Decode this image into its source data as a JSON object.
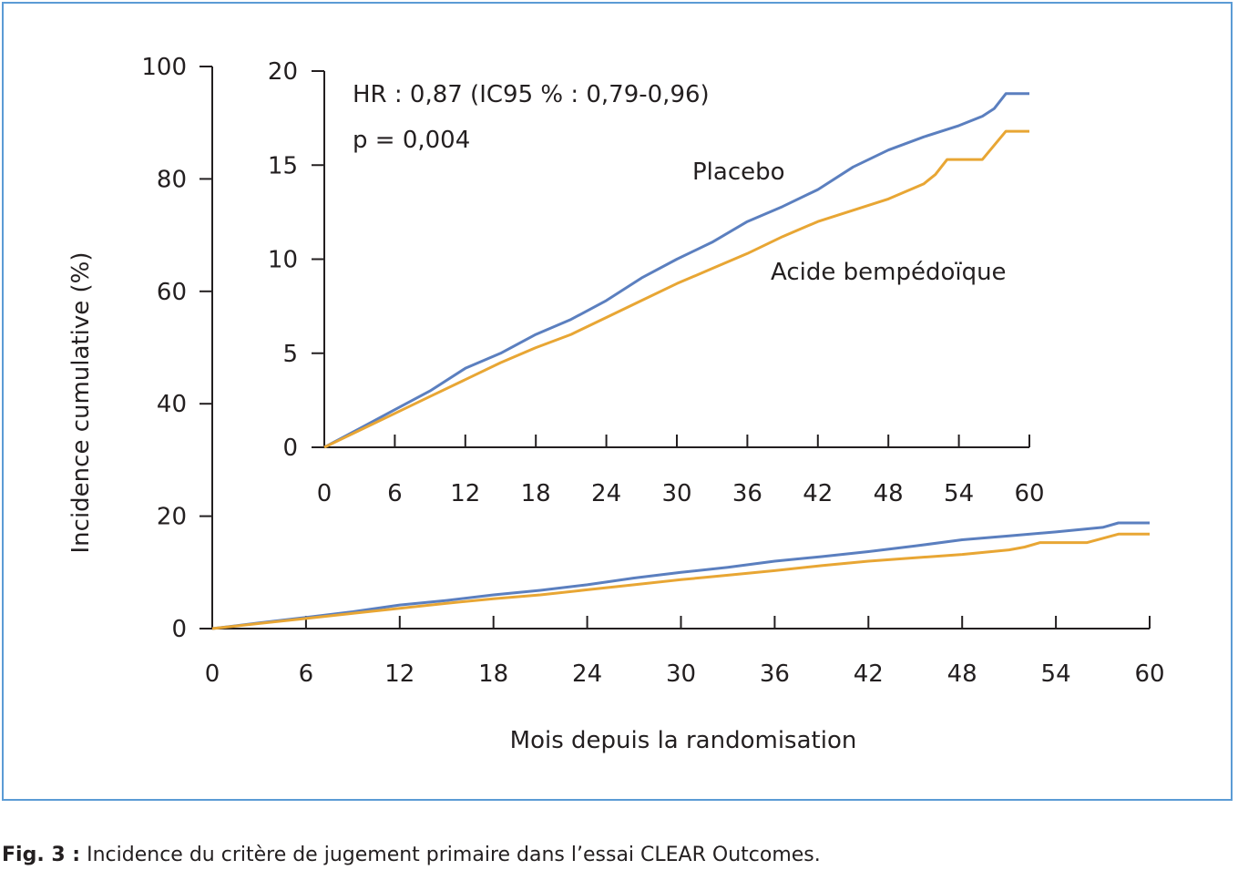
{
  "caption": {
    "label": "Fig. 3 :",
    "text": "Incidence du critère de jugement primaire dans l’essai CLEAR Outcomes."
  },
  "colors": {
    "placebo": "#5b7fbf",
    "bempedoic": "#e8a634",
    "frame": "#5b9bd5"
  },
  "chart_data": [
    {
      "type": "line",
      "role": "main",
      "xlabel": "Mois depuis la randomisation",
      "ylabel": "Incidence cumulative (%)",
      "xlim": [
        0,
        60
      ],
      "ylim": [
        0,
        100
      ],
      "xticks": [
        0,
        6,
        12,
        18,
        24,
        30,
        36,
        42,
        48,
        54,
        60
      ],
      "yticks": [
        0,
        20,
        40,
        60,
        80,
        100
      ],
      "grid": false,
      "series": [
        {
          "name": "Placebo",
          "color": "#5b7fbf",
          "x": [
            0,
            3,
            6,
            9,
            12,
            15,
            18,
            21,
            24,
            27,
            30,
            33,
            36,
            39,
            42,
            45,
            48,
            51,
            54,
            57,
            58,
            60
          ],
          "y": [
            0,
            1.0,
            2.0,
            3.0,
            4.2,
            5.0,
            6.0,
            6.8,
            7.8,
            9.0,
            10.0,
            10.9,
            12.0,
            12.8,
            13.7,
            14.7,
            15.8,
            16.5,
            17.2,
            18.0,
            18.8,
            18.8
          ]
        },
        {
          "name": "Acide bempédoïque",
          "color": "#e8a634",
          "x": [
            0,
            3,
            6,
            9,
            12,
            15,
            18,
            21,
            24,
            27,
            30,
            33,
            36,
            39,
            42,
            45,
            48,
            51,
            52,
            53,
            56,
            58,
            60
          ],
          "y": [
            0,
            0.9,
            1.8,
            2.7,
            3.6,
            4.5,
            5.3,
            6.0,
            6.9,
            7.8,
            8.7,
            9.5,
            10.3,
            11.2,
            12.0,
            12.6,
            13.2,
            14.0,
            14.5,
            15.3,
            15.3,
            16.8,
            16.8
          ]
        }
      ]
    },
    {
      "type": "line",
      "role": "inset",
      "xlim": [
        0,
        60
      ],
      "ylim": [
        0,
        20
      ],
      "xticks": [
        0,
        6,
        12,
        18,
        24,
        30,
        36,
        42,
        48,
        54,
        60
      ],
      "yticks": [
        0,
        5,
        10,
        15,
        20
      ],
      "grid": false,
      "annotations": [
        "HR : 0,87 (IC95 % : 0,79-0,96)",
        "p = 0,004"
      ],
      "series": [
        {
          "name": "Placebo",
          "color": "#5b7fbf",
          "x": [
            0,
            3,
            6,
            9,
            12,
            15,
            18,
            21,
            24,
            27,
            30,
            33,
            36,
            39,
            42,
            45,
            48,
            51,
            54,
            56,
            57,
            58,
            60
          ],
          "y": [
            0,
            1.0,
            2.0,
            3.0,
            4.2,
            5.0,
            6.0,
            6.8,
            7.8,
            9.0,
            10.0,
            10.9,
            12.0,
            12.8,
            13.7,
            14.9,
            15.8,
            16.5,
            17.1,
            17.6,
            18.0,
            18.8,
            18.8
          ]
        },
        {
          "name": "Acide bempédoïque",
          "color": "#e8a634",
          "x": [
            0,
            3,
            6,
            9,
            12,
            15,
            18,
            21,
            24,
            27,
            30,
            33,
            36,
            39,
            42,
            45,
            48,
            51,
            52,
            53,
            56,
            58,
            60
          ],
          "y": [
            0,
            0.9,
            1.8,
            2.7,
            3.6,
            4.5,
            5.3,
            6.0,
            6.9,
            7.8,
            8.7,
            9.5,
            10.3,
            11.2,
            12.0,
            12.6,
            13.2,
            14.0,
            14.5,
            15.3,
            15.3,
            16.8,
            16.8
          ]
        }
      ]
    }
  ]
}
